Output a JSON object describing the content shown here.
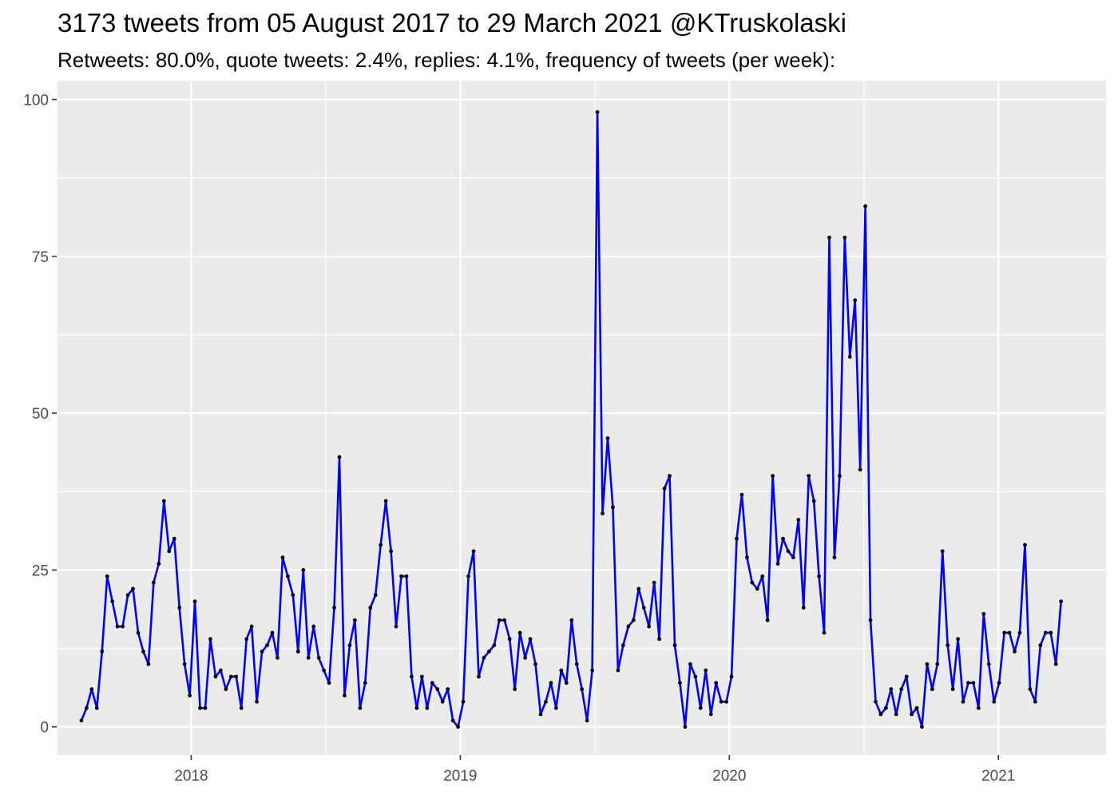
{
  "chart_data": {
    "type": "line",
    "title": "3173 tweets from 05 August 2017 to 29 March 2021 @KTruskolaski",
    "subtitle": "Retweets: 80.0%, quote tweets: 2.4%, replies: 4.1%, frequency of tweets (per week):",
    "xlabel": "",
    "ylabel": "",
    "x_ticks": [
      {
        "label": "2018",
        "year": 2018.0
      },
      {
        "label": "2019",
        "year": 2019.0
      },
      {
        "label": "2020",
        "year": 2020.0
      },
      {
        "label": "2021",
        "year": 2021.0
      }
    ],
    "y_ticks": [
      0,
      25,
      50,
      75,
      100
    ],
    "xlim": [
      2017.5,
      2021.4
    ],
    "ylim": [
      -4.5,
      103
    ],
    "grid": true,
    "background_color": "#ebebeb",
    "line_color": "#0000ff",
    "point_color": "#000000",
    "start_date": "2017-08-05",
    "interval_days": 7,
    "series": [
      {
        "values": [
          1,
          3,
          6,
          3,
          12,
          24,
          20,
          16,
          16,
          21,
          22,
          15,
          12,
          10,
          23,
          26,
          36,
          28,
          30,
          19,
          10,
          5,
          20,
          3,
          3,
          14,
          8,
          9,
          6,
          8,
          8,
          3,
          14,
          16,
          4,
          12,
          13,
          15,
          11,
          27,
          24,
          21,
          12,
          25,
          11,
          16,
          11,
          9,
          7,
          19,
          43,
          5,
          13,
          17,
          3,
          7,
          19,
          21,
          29,
          36,
          28,
          16,
          24,
          24,
          8,
          3,
          8,
          3,
          7,
          6,
          4,
          6,
          1,
          0,
          4,
          24,
          28,
          8,
          11,
          12,
          13,
          17,
          17,
          14,
          6,
          15,
          11,
          14,
          10,
          2,
          4,
          7,
          3,
          9,
          7,
          17,
          10,
          6,
          1,
          9,
          98,
          34,
          46,
          35,
          9,
          13,
          16,
          17,
          22,
          19,
          16,
          23,
          14,
          38,
          40,
          13,
          7,
          0,
          10,
          8,
          3,
          9,
          2,
          7,
          4,
          4,
          8,
          30,
          37,
          27,
          23,
          22,
          24,
          17,
          40,
          26,
          30,
          28,
          27,
          33,
          19,
          40,
          36,
          24,
          15,
          78,
          27,
          40,
          78,
          59,
          68,
          41,
          83,
          17,
          4,
          2,
          3,
          6,
          2,
          6,
          8,
          2,
          3,
          0,
          10,
          6,
          10,
          28,
          13,
          6,
          14,
          4,
          7,
          7,
          3,
          18,
          10,
          4,
          7,
          15,
          15,
          12,
          15,
          29,
          6,
          4,
          13,
          15,
          15,
          10,
          20
        ]
      }
    ]
  }
}
